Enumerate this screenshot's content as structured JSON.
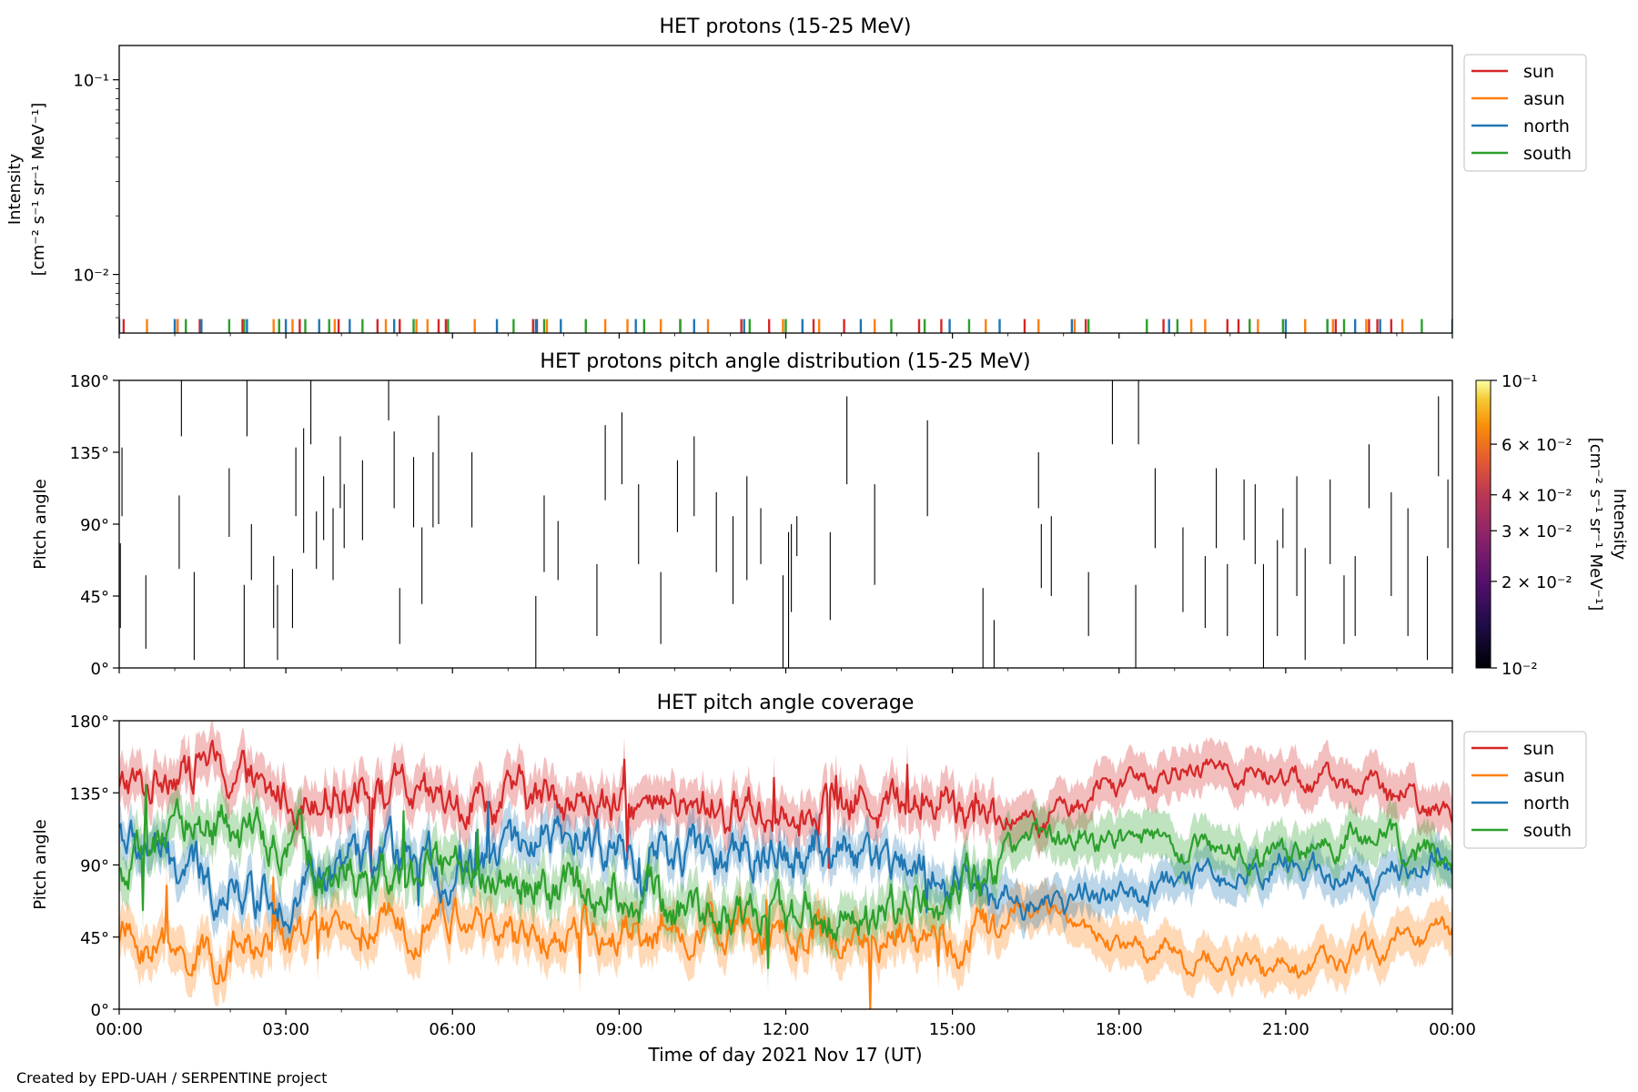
{
  "footer": "Created by EPD-UAH / SERPENTINE project",
  "xlabel": "Time of day 2021 Nov 17 (UT)",
  "xticks": [
    "00:00",
    "03:00",
    "06:00",
    "09:00",
    "12:00",
    "15:00",
    "18:00",
    "21:00",
    "00:00"
  ],
  "colors": {
    "sun": "#d62728",
    "asun": "#ff7f0e",
    "north": "#1f77b4",
    "south": "#2ca02c"
  },
  "chart_data": [
    {
      "type": "line",
      "title": "HET protons (15-25 MeV)",
      "ylabel_line1": "Intensity",
      "ylabel_line2": "[cm⁻² s⁻¹ sr⁻¹ MeV⁻¹]",
      "yscale": "log",
      "yticks": [
        {
          "label": "10⁻¹",
          "value": 0.1
        },
        {
          "label": "10⁻²",
          "value": 0.01
        }
      ],
      "ylim": [
        0.005,
        0.15
      ],
      "xlim_hours": [
        0,
        24
      ],
      "legend": {
        "placement": "outside-right-top",
        "entries": [
          "sun",
          "asun",
          "north",
          "south"
        ]
      },
      "note": "Intensity values at the lower edge of the plot; data appear as short sparse ticks near 0.0055",
      "series": [
        {
          "name": "sun",
          "x_hours": [
            0.08,
            1.05,
            1.45,
            2.22,
            2.88,
            3.25,
            3.95,
            4.65,
            5.05,
            5.75,
            5.88,
            7.45,
            7.52,
            10.1,
            11.2,
            11.7,
            12.5,
            13.05,
            14.4,
            14.8,
            16.3,
            17.4,
            18.8,
            19.95,
            20.15,
            20.35,
            21.9,
            22.5,
            22.65,
            22.9
          ],
          "y": 0.0055
        },
        {
          "name": "asun",
          "x_hours": [
            0.5,
            1.05,
            2.78,
            3.12,
            3.88,
            4.8,
            5.35,
            5.55,
            6.4,
            7.7,
            8.75,
            9.15,
            9.75,
            10.6,
            11.95,
            12.6,
            13.6,
            15.6,
            16.55,
            17.2,
            19.3,
            19.55,
            20.5,
            21.35,
            21.85,
            22.45,
            23.1
          ],
          "y": 0.0055
        },
        {
          "name": "north",
          "x_hours": [
            0.0,
            1.0,
            1.48,
            2.3,
            3.0,
            3.6,
            4.15,
            4.95,
            6.8,
            7.5,
            7.95,
            9.3,
            10.35,
            11.25,
            12.3,
            13.35,
            14.95,
            15.85,
            17.15,
            18.9,
            21.0,
            21.75,
            22.25,
            22.7,
            24.0
          ],
          "y": 0.0055
        },
        {
          "name": "south",
          "x_hours": [
            1.2,
            1.98,
            2.25,
            2.88,
            3.35,
            3.78,
            4.38,
            5.3,
            5.92,
            7.1,
            7.65,
            8.4,
            9.45,
            10.1,
            11.35,
            12.0,
            13.9,
            14.5,
            15.3,
            17.45,
            18.5,
            19.05,
            20.35,
            20.95,
            21.75,
            22.05,
            23.45
          ],
          "y": 0.0055
        }
      ]
    },
    {
      "type": "heatmap",
      "title": "HET protons pitch angle distribution (15-25 MeV)",
      "ylabel": "Pitch angle",
      "yticks": [
        "0°",
        "45°",
        "90°",
        "135°",
        "180°"
      ],
      "yticks_values": [
        0,
        45,
        90,
        135,
        180
      ],
      "ylim": [
        0,
        180
      ],
      "xlim_hours": [
        0,
        24
      ],
      "colorbar": {
        "label_line1": "Intensity",
        "label_line2": "[cm⁻² s⁻¹ sr⁻¹ MeV⁻¹]",
        "scale": "log",
        "range": [
          0.01,
          0.1
        ],
        "colormap": "inferno",
        "ticks": [
          {
            "label": "10⁻¹",
            "value": 0.1
          },
          {
            "label": "6 × 10⁻²",
            "value": 0.06
          },
          {
            "label": "4 × 10⁻²",
            "value": 0.04
          },
          {
            "label": "3 × 10⁻²",
            "value": 0.03
          },
          {
            "label": "2 × 10⁻²",
            "value": 0.02
          },
          {
            "label": "10⁻²",
            "value": 0.01
          }
        ]
      },
      "note": "Sparse thin dark vertical segments; each [hour, pitch_min, pitch_max]",
      "segments": [
        [
          0.02,
          25,
          78
        ],
        [
          0.05,
          95,
          138
        ],
        [
          0.48,
          12,
          58
        ],
        [
          1.08,
          62,
          108
        ],
        [
          1.12,
          145,
          180
        ],
        [
          1.35,
          5,
          60
        ],
        [
          1.98,
          82,
          125
        ],
        [
          2.25,
          0,
          52
        ],
        [
          2.3,
          145,
          180
        ],
        [
          2.38,
          55,
          90
        ],
        [
          2.78,
          25,
          70
        ],
        [
          2.85,
          5,
          52
        ],
        [
          3.12,
          25,
          62
        ],
        [
          3.18,
          95,
          138
        ],
        [
          3.32,
          72,
          150
        ],
        [
          3.45,
          140,
          180
        ],
        [
          3.55,
          62,
          98
        ],
        [
          3.68,
          80,
          120
        ],
        [
          3.85,
          55,
          100
        ],
        [
          3.98,
          100,
          145
        ],
        [
          4.05,
          75,
          115
        ],
        [
          4.38,
          80,
          130
        ],
        [
          4.85,
          155,
          180
        ],
        [
          4.95,
          100,
          148
        ],
        [
          5.05,
          15,
          50
        ],
        [
          5.3,
          88,
          132
        ],
        [
          5.45,
          40,
          88
        ],
        [
          5.65,
          88,
          135
        ],
        [
          5.75,
          90,
          158
        ],
        [
          6.35,
          88,
          135
        ],
        [
          7.5,
          0,
          45
        ],
        [
          7.65,
          60,
          108
        ],
        [
          7.9,
          55,
          92
        ],
        [
          8.6,
          20,
          65
        ],
        [
          8.75,
          105,
          152
        ],
        [
          9.05,
          115,
          160
        ],
        [
          9.35,
          65,
          115
        ],
        [
          9.75,
          15,
          60
        ],
        [
          10.05,
          85,
          130
        ],
        [
          10.35,
          95,
          145
        ],
        [
          10.75,
          60,
          110
        ],
        [
          11.05,
          40,
          95
        ],
        [
          11.3,
          55,
          120
        ],
        [
          11.55,
          65,
          100
        ],
        [
          11.95,
          0,
          58
        ],
        [
          12.05,
          0,
          85
        ],
        [
          12.1,
          35,
          90
        ],
        [
          12.2,
          70,
          95
        ],
        [
          12.8,
          30,
          85
        ],
        [
          13.1,
          115,
          170
        ],
        [
          13.6,
          52,
          115
        ],
        [
          14.55,
          95,
          155
        ],
        [
          15.55,
          0,
          50
        ],
        [
          15.75,
          0,
          30
        ],
        [
          16.55,
          100,
          135
        ],
        [
          16.6,
          50,
          90
        ],
        [
          16.78,
          45,
          95
        ],
        [
          17.45,
          20,
          60
        ],
        [
          17.88,
          140,
          180
        ],
        [
          18.3,
          0,
          52
        ],
        [
          18.35,
          140,
          180
        ],
        [
          18.65,
          75,
          125
        ],
        [
          19.15,
          35,
          88
        ],
        [
          19.55,
          25,
          70
        ],
        [
          19.75,
          75,
          125
        ],
        [
          19.95,
          20,
          65
        ],
        [
          20.25,
          80,
          118
        ],
        [
          20.45,
          65,
          115
        ],
        [
          20.6,
          0,
          65
        ],
        [
          20.85,
          20,
          80
        ],
        [
          20.95,
          75,
          100
        ],
        [
          21.2,
          45,
          120
        ],
        [
          21.35,
          5,
          75
        ],
        [
          21.8,
          65,
          118
        ],
        [
          22.05,
          15,
          58
        ],
        [
          22.25,
          20,
          70
        ],
        [
          22.5,
          100,
          140
        ],
        [
          22.9,
          45,
          110
        ],
        [
          23.2,
          20,
          100
        ],
        [
          23.55,
          5,
          70
        ],
        [
          23.75,
          120,
          170
        ],
        [
          23.92,
          75,
          118
        ]
      ]
    },
    {
      "type": "line",
      "title": "HET pitch angle coverage",
      "ylabel": "Pitch angle",
      "yticks": [
        "0°",
        "45°",
        "90°",
        "135°",
        "180°"
      ],
      "yticks_values": [
        0,
        45,
        90,
        135,
        180
      ],
      "ylim": [
        0,
        180
      ],
      "xlim_hours": [
        0,
        24
      ],
      "legend": {
        "placement": "outside-right-top",
        "entries": [
          "sun",
          "asun",
          "north",
          "south"
        ]
      },
      "note": "Approximate noisy pitch-angle traces with shaded coverage bands; anchor values every 1.5 h",
      "series": [
        {
          "name": "sun",
          "anchor_hours": [
            0,
            1.5,
            3,
            4.5,
            6,
            7.5,
            9,
            10.5,
            12,
            13.5,
            15,
            16.5,
            18,
            19.5,
            21,
            22.5,
            24
          ],
          "anchor_values": [
            135,
            155,
            130,
            140,
            125,
            135,
            125,
            125,
            125,
            130,
            130,
            115,
            145,
            150,
            145,
            140,
            120
          ],
          "noise": 20,
          "band": 14
        },
        {
          "name": "asun",
          "anchor_hours": [
            0,
            1.5,
            3,
            4.5,
            6,
            7.5,
            9,
            10.5,
            12,
            13.5,
            15,
            16.5,
            18,
            19.5,
            21,
            22.5,
            24
          ],
          "anchor_values": [
            45,
            30,
            45,
            50,
            60,
            40,
            50,
            50,
            45,
            45,
            40,
            65,
            40,
            30,
            25,
            35,
            50
          ],
          "noise": 18,
          "band": 14
        },
        {
          "name": "north",
          "anchor_hours": [
            0,
            1.5,
            3,
            4.5,
            6,
            7.5,
            9,
            10.5,
            12,
            13.5,
            15,
            16.5,
            18,
            19.5,
            21,
            22.5,
            24
          ],
          "anchor_values": [
            110,
            80,
            70,
            95,
            85,
            110,
            100,
            95,
            100,
            95,
            80,
            65,
            75,
            80,
            90,
            80,
            95
          ],
          "noise": 22,
          "band": 12
        },
        {
          "name": "south",
          "anchor_hours": [
            0,
            1.5,
            3,
            4.5,
            6,
            7.5,
            9,
            10.5,
            12,
            13.5,
            15,
            16.5,
            18,
            19.5,
            21,
            22.5,
            24
          ],
          "anchor_values": [
            80,
            120,
            100,
            80,
            90,
            75,
            75,
            60,
            60,
            60,
            75,
            110,
            105,
            100,
            95,
            110,
            90
          ],
          "noise": 22,
          "band": 14
        }
      ]
    }
  ]
}
